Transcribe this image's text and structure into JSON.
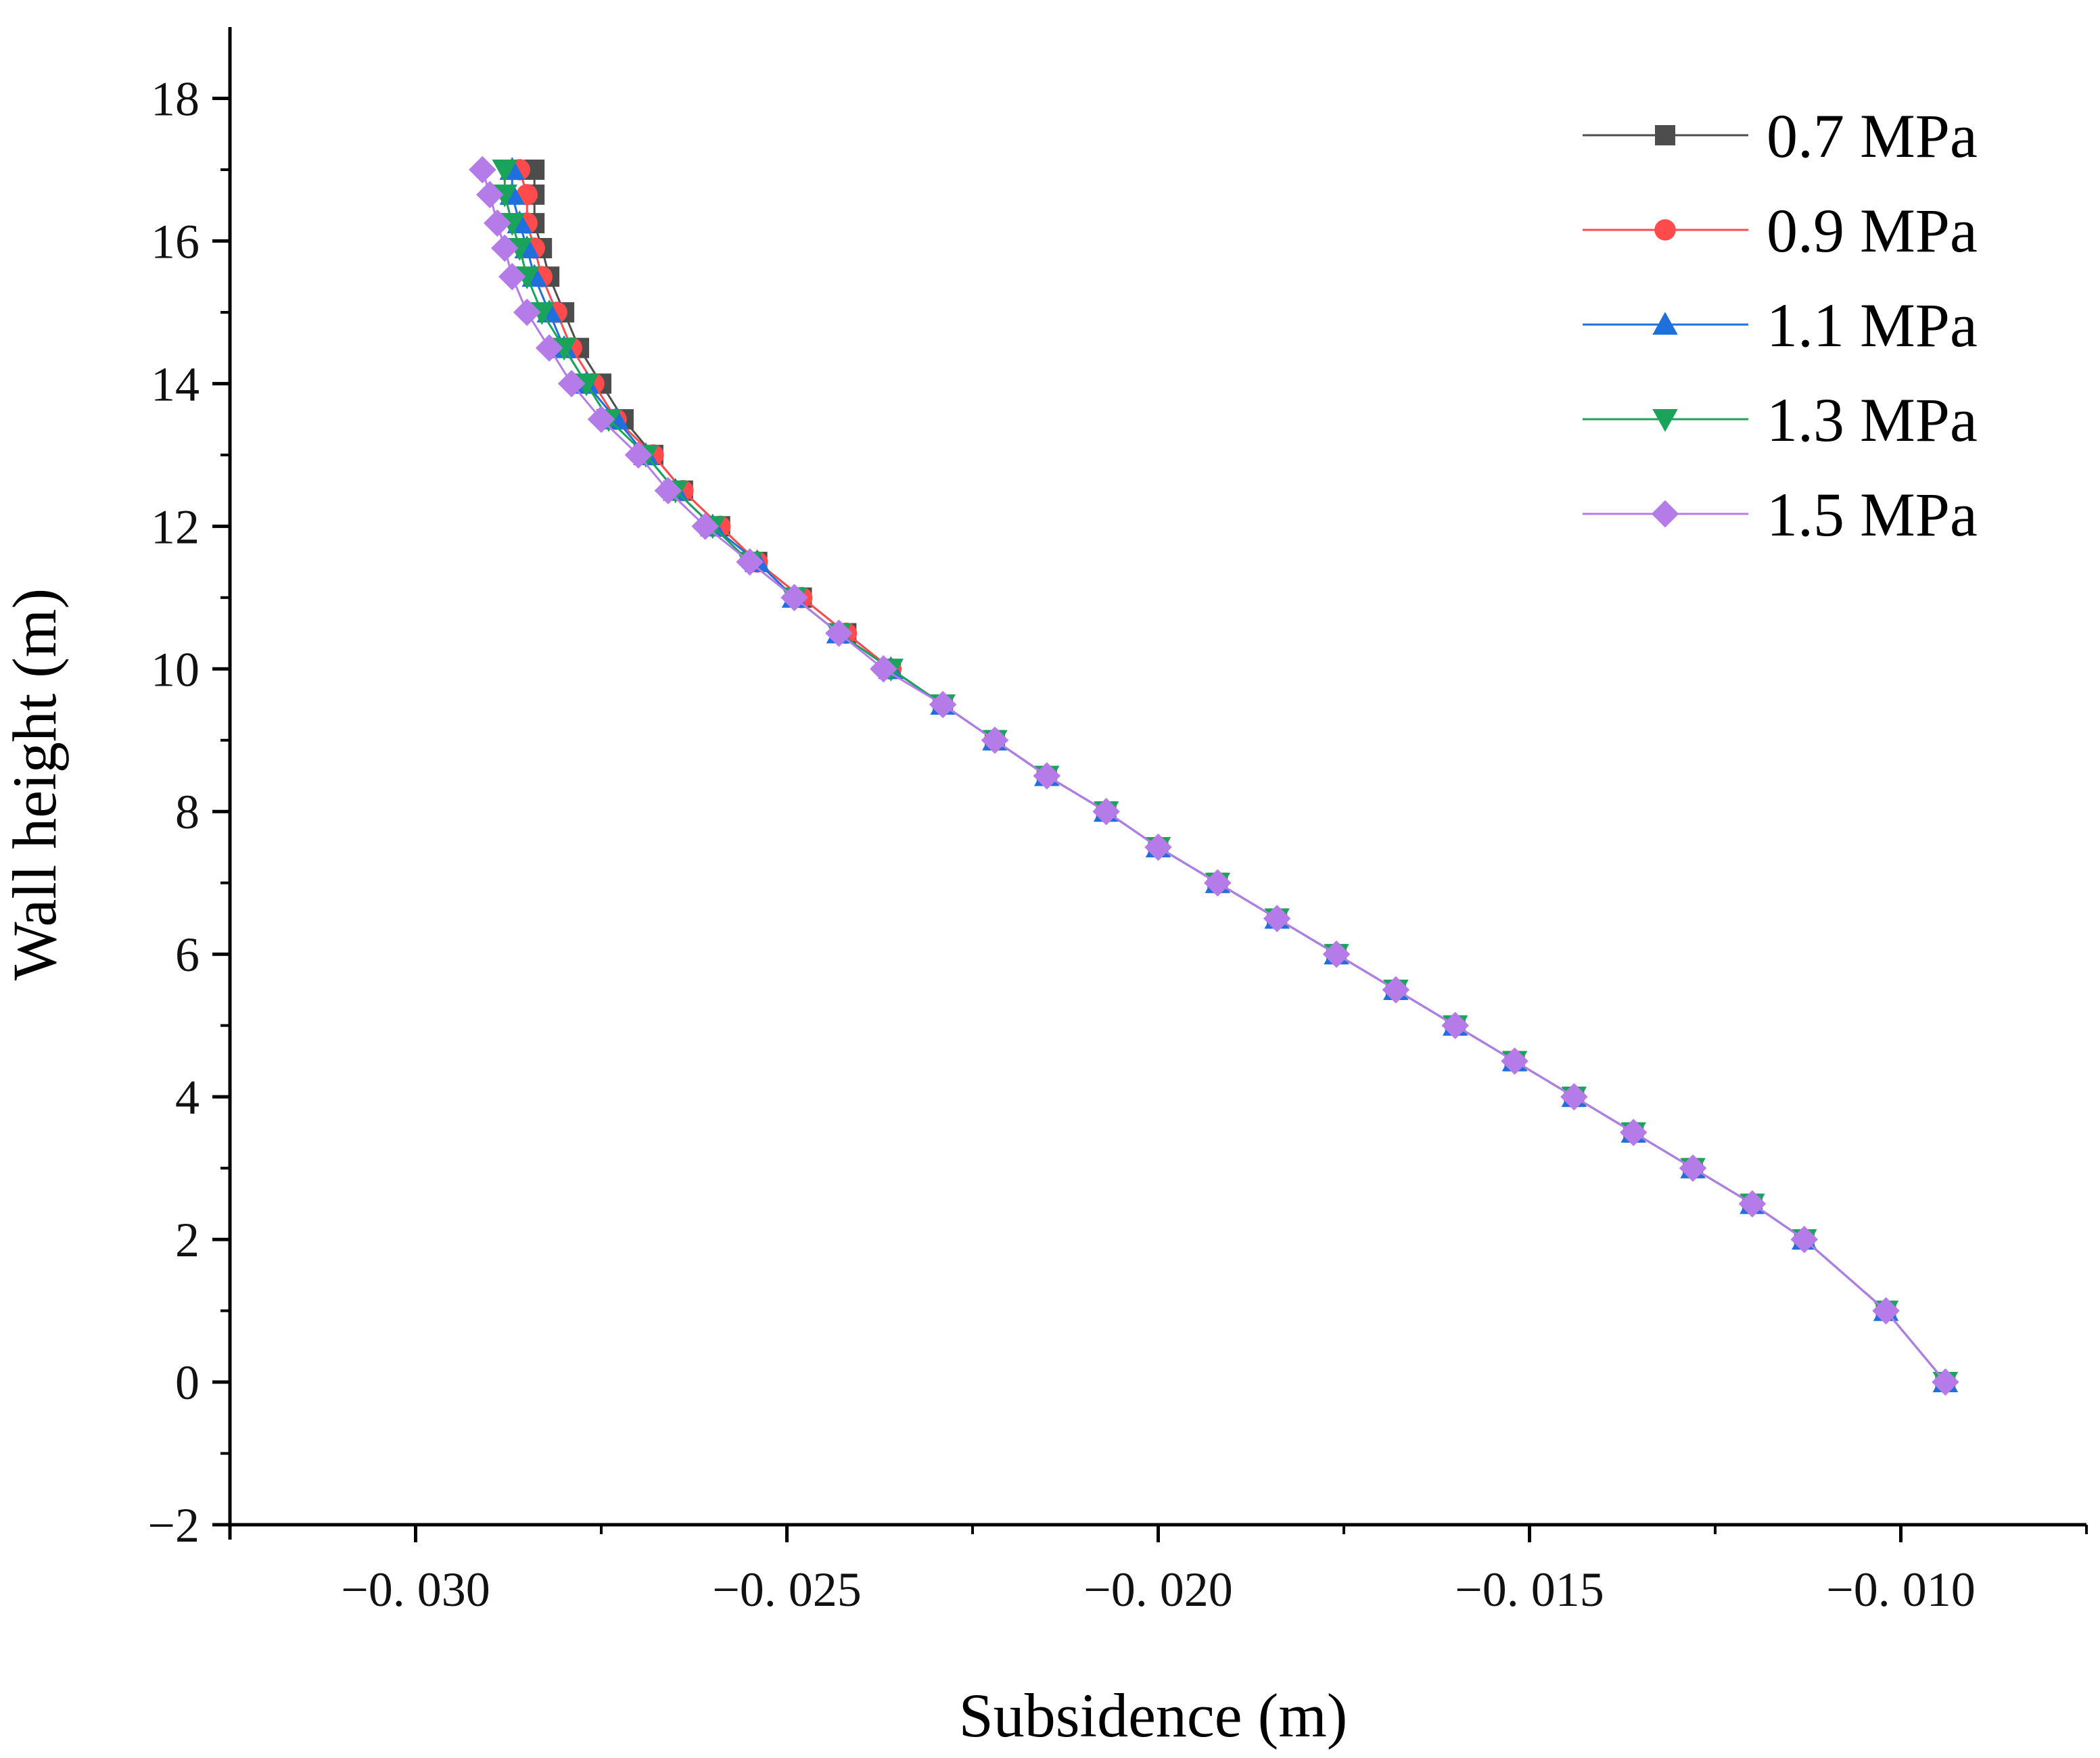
{
  "chart_data": {
    "type": "line",
    "xlabel": "Subsidence (m)",
    "ylabel": "Wall height (m)",
    "xlim": [
      -0.0325,
      -0.0075
    ],
    "ylim": [
      -2,
      19
    ],
    "x_ticks": [
      -0.03,
      -0.025,
      -0.02,
      -0.015,
      -0.01
    ],
    "x_tick_labels": [
      "−0. 030",
      "−0. 025",
      "−0. 020",
      "−0. 015",
      "−0. 010"
    ],
    "y_ticks": [
      -2,
      0,
      2,
      4,
      6,
      8,
      10,
      12,
      14,
      16,
      18
    ],
    "y_tick_labels": [
      "−2",
      "0",
      "2",
      "4",
      "6",
      "8",
      "10",
      "12",
      "14",
      "16",
      "18"
    ],
    "legend_position": "top-right",
    "y": [
      0,
      1,
      2,
      2.5,
      3,
      3.5,
      4,
      4.5,
      5,
      5.5,
      6,
      6.5,
      7,
      7.5,
      8,
      8.5,
      9,
      9.5,
      10,
      10.5,
      11,
      11.5,
      12,
      12.5,
      13,
      13.5,
      14,
      14.5,
      15,
      15.5,
      15.9,
      16.25,
      16.65,
      17
    ],
    "series": [
      {
        "name": "0.7 MPa",
        "color": "#4d4d4d",
        "marker": "square",
        "x": [
          -0.0094,
          -0.0102,
          -0.0113,
          -0.012,
          -0.0128,
          -0.0136,
          -0.0144,
          -0.0152,
          -0.016,
          -0.0168,
          -0.0176,
          -0.0184,
          -0.0192,
          -0.02,
          -0.0207,
          -0.0215,
          -0.0222,
          -0.0229,
          -0.0236,
          -0.0242,
          -0.0248,
          -0.0254,
          -0.0259,
          -0.0264,
          -0.0268,
          -0.0272,
          -0.0275,
          -0.0278,
          -0.028,
          -0.0282,
          -0.0283,
          -0.0284,
          -0.0284,
          -0.0284
        ]
      },
      {
        "name": "0.9 MPa",
        "color": "#ff4b4b",
        "marker": "circle",
        "x": [
          -0.0094,
          -0.0102,
          -0.0113,
          -0.012,
          -0.0128,
          -0.0136,
          -0.0144,
          -0.0152,
          -0.016,
          -0.0168,
          -0.0176,
          -0.0184,
          -0.0192,
          -0.02,
          -0.0207,
          -0.0215,
          -0.0222,
          -0.0229,
          -0.0236,
          -0.0242,
          -0.0248,
          -0.0254,
          -0.0259,
          -0.0264,
          -0.0268,
          -0.0273,
          -0.0276,
          -0.0279,
          -0.0281,
          -0.0283,
          -0.0284,
          -0.0285,
          -0.0285,
          -0.0286
        ]
      },
      {
        "name": "1.1 MPa",
        "color": "#1f6fdc",
        "marker": "triangle-up",
        "x": [
          -0.0094,
          -0.0102,
          -0.0113,
          -0.012,
          -0.0128,
          -0.0136,
          -0.0144,
          -0.0152,
          -0.016,
          -0.0168,
          -0.0176,
          -0.0184,
          -0.0192,
          -0.02,
          -0.0207,
          -0.0215,
          -0.0222,
          -0.0229,
          -0.0236,
          -0.0243,
          -0.0249,
          -0.0254,
          -0.026,
          -0.0265,
          -0.0269,
          -0.0273,
          -0.0277,
          -0.028,
          -0.0282,
          -0.0284,
          -0.0285,
          -0.0286,
          -0.0287,
          -0.0287
        ]
      },
      {
        "name": "1.3 MPa",
        "color": "#1aa35a",
        "marker": "triangle-down",
        "x": [
          -0.0094,
          -0.0102,
          -0.0113,
          -0.012,
          -0.0128,
          -0.0136,
          -0.0144,
          -0.0152,
          -0.016,
          -0.0168,
          -0.0176,
          -0.0184,
          -0.0192,
          -0.02,
          -0.0207,
          -0.0215,
          -0.0222,
          -0.0229,
          -0.0236,
          -0.0243,
          -0.0249,
          -0.0255,
          -0.026,
          -0.0265,
          -0.0269,
          -0.0274,
          -0.0277,
          -0.028,
          -0.0283,
          -0.0285,
          -0.0286,
          -0.0287,
          -0.0288,
          -0.0288
        ]
      },
      {
        "name": "1.5 MPa",
        "color": "#b57be8",
        "marker": "diamond",
        "x": [
          -0.0094,
          -0.0102,
          -0.0113,
          -0.012,
          -0.0128,
          -0.0136,
          -0.0144,
          -0.0152,
          -0.016,
          -0.0168,
          -0.0176,
          -0.0184,
          -0.0192,
          -0.02,
          -0.0207,
          -0.0215,
          -0.0222,
          -0.0229,
          -0.0237,
          -0.0243,
          -0.0249,
          -0.0255,
          -0.0261,
          -0.0266,
          -0.027,
          -0.0275,
          -0.0279,
          -0.0282,
          -0.0285,
          -0.0287,
          -0.0288,
          -0.0289,
          -0.029,
          -0.0291
        ]
      }
    ]
  }
}
